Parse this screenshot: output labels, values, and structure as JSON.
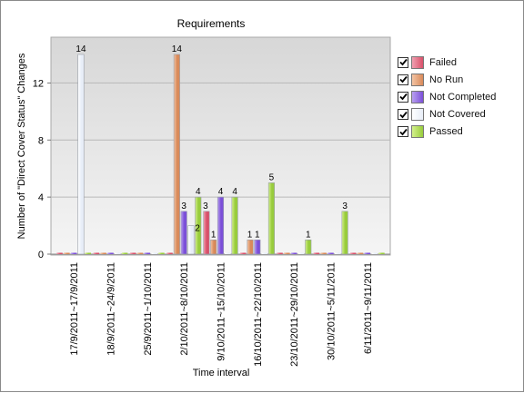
{
  "chart_data": {
    "type": "bar",
    "title": "Requirements",
    "xlabel": "Time interval",
    "ylabel": "Number of \"Direct Cover Status\" Changes",
    "ylim": [
      0,
      15
    ],
    "yticks": [
      0,
      4,
      8,
      12
    ],
    "grid": true,
    "legend_position": "right",
    "categories": [
      "17/9/2011~17/9/2011",
      "18/9/2011~24/9/2011",
      "25/9/2011~1/10/2011",
      "2/10/2011~8/10/2011",
      "9/10/2011~15/10/2011",
      "16/10/2011~22/10/2011",
      "23/10/2011~29/10/2011",
      "30/10/2011~5/11/2011",
      "6/11/2011~9/11/2011"
    ],
    "series": [
      {
        "name": "Failed",
        "color": "#d9506a",
        "light": "#f0a0b0",
        "values": [
          0,
          0,
          0,
          0,
          3,
          0,
          0,
          0,
          0
        ],
        "labels": [
          null,
          null,
          null,
          null,
          "3",
          null,
          null,
          null,
          null
        ]
      },
      {
        "name": "No Run",
        "color": "#d98a5a",
        "light": "#f3c4a4",
        "values": [
          0,
          0,
          0,
          14,
          1,
          1,
          0,
          0,
          0
        ],
        "labels": [
          null,
          null,
          null,
          "14",
          "1",
          "1",
          null,
          null,
          null
        ]
      },
      {
        "name": "Not Completed",
        "color": "#7b4fd8",
        "light": "#b9a0f0",
        "values": [
          0,
          0,
          0,
          3,
          4,
          1,
          0,
          0,
          0
        ],
        "labels": [
          null,
          null,
          null,
          "3",
          "4",
          "1",
          null,
          null,
          null
        ]
      },
      {
        "name": "Not Covered",
        "color": "#e8eef8",
        "light": "#ffffff",
        "values": [
          14,
          0,
          0,
          2,
          0,
          0,
          0,
          0,
          0
        ],
        "labels": [
          "14",
          null,
          null,
          "2",
          null,
          null,
          null,
          null,
          null
        ]
      },
      {
        "name": "Passed",
        "color": "#98cc3c",
        "light": "#d4f08c",
        "values": [
          0,
          0,
          0,
          4,
          4,
          5,
          1,
          3,
          0
        ],
        "labels": [
          null,
          null,
          null,
          "4",
          "4",
          "5",
          "1",
          "3",
          null
        ]
      }
    ]
  }
}
